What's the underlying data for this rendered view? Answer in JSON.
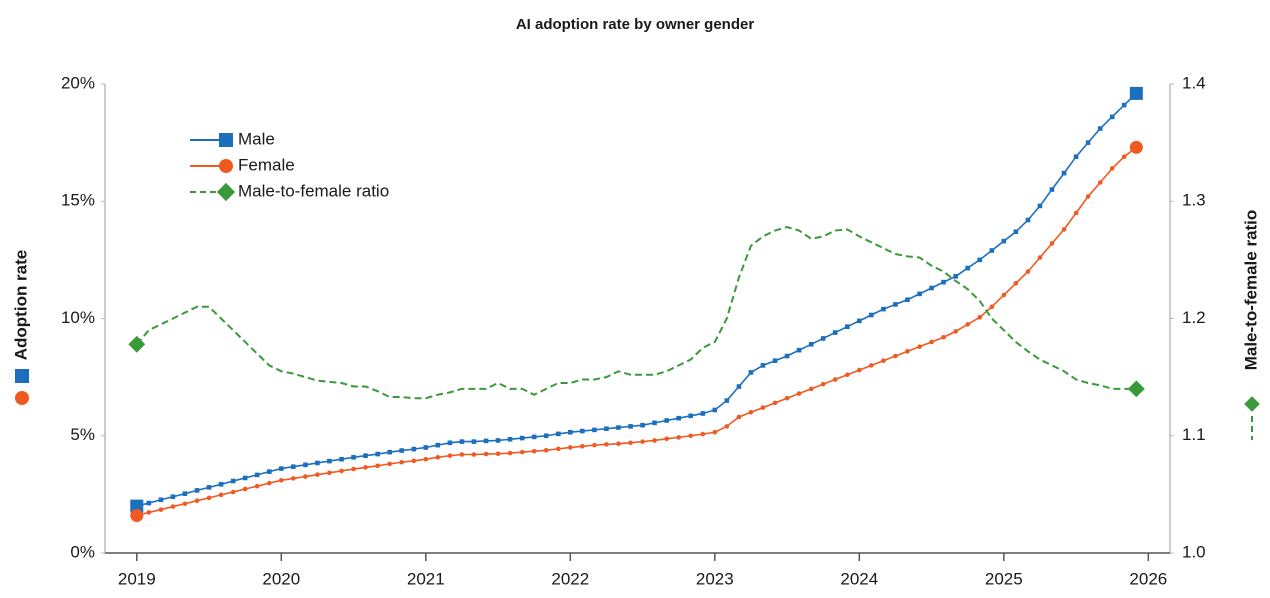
{
  "chart_data": {
    "type": "line",
    "title": "AI adoption rate by owner gender",
    "y_label": "Adoption rate",
    "y2_label": "Male-to-female ratio",
    "x": [
      2019,
      2019.083,
      2019.167,
      2019.25,
      2019.333,
      2019.417,
      2019.5,
      2019.583,
      2019.667,
      2019.75,
      2019.833,
      2019.917,
      2020,
      2020.083,
      2020.167,
      2020.25,
      2020.333,
      2020.417,
      2020.5,
      2020.583,
      2020.667,
      2020.75,
      2020.833,
      2020.917,
      2021,
      2021.083,
      2021.167,
      2021.25,
      2021.333,
      2021.417,
      2021.5,
      2021.583,
      2021.667,
      2021.75,
      2021.833,
      2021.917,
      2022,
      2022.083,
      2022.167,
      2022.25,
      2022.333,
      2022.417,
      2022.5,
      2022.583,
      2022.667,
      2022.75,
      2022.833,
      2022.917,
      2023,
      2023.083,
      2023.167,
      2023.25,
      2023.333,
      2023.417,
      2023.5,
      2023.583,
      2023.667,
      2023.75,
      2023.833,
      2023.917,
      2024,
      2024.083,
      2024.167,
      2024.25,
      2024.333,
      2024.417,
      2024.5,
      2024.583,
      2024.667,
      2024.75,
      2024.833,
      2024.917,
      2025,
      2025.083,
      2025.167,
      2025.25,
      2025.333,
      2025.417,
      2025.5,
      2025.583,
      2025.667,
      2025.75,
      2025.833,
      2025.917
    ],
    "series": [
      {
        "name": "Male",
        "color": "#1b6fbd",
        "marker": "square",
        "dashed": false,
        "values": [
          2.0,
          2.13,
          2.27,
          2.4,
          2.53,
          2.67,
          2.8,
          2.93,
          3.07,
          3.2,
          3.33,
          3.47,
          3.6,
          3.68,
          3.76,
          3.84,
          3.92,
          4.0,
          4.08,
          4.15,
          4.22,
          4.3,
          4.37,
          4.43,
          4.5,
          4.6,
          4.7,
          4.75,
          4.75,
          4.78,
          4.8,
          4.85,
          4.9,
          4.95,
          5.0,
          5.08,
          5.15,
          5.2,
          5.25,
          5.3,
          5.35,
          5.4,
          5.45,
          5.55,
          5.65,
          5.75,
          5.85,
          5.95,
          6.1,
          6.5,
          7.1,
          7.7,
          8.0,
          8.2,
          8.4,
          8.65,
          8.9,
          9.15,
          9.4,
          9.65,
          9.9,
          10.15,
          10.4,
          10.6,
          10.8,
          11.05,
          11.3,
          11.55,
          11.8,
          12.15,
          12.5,
          12.9,
          13.3,
          13.7,
          14.2,
          14.8,
          15.5,
          16.2,
          16.9,
          17.5,
          18.1,
          18.6,
          19.1,
          19.6
        ]
      },
      {
        "name": "Female",
        "color": "#f05a22",
        "marker": "circle",
        "dashed": false,
        "values": [
          1.6,
          1.73,
          1.85,
          1.98,
          2.1,
          2.23,
          2.35,
          2.48,
          2.6,
          2.73,
          2.85,
          2.98,
          3.1,
          3.18,
          3.26,
          3.34,
          3.42,
          3.5,
          3.58,
          3.65,
          3.72,
          3.8,
          3.87,
          3.93,
          4.0,
          4.08,
          4.15,
          4.2,
          4.2,
          4.22,
          4.23,
          4.26,
          4.3,
          4.34,
          4.38,
          4.44,
          4.5,
          4.55,
          4.6,
          4.63,
          4.66,
          4.7,
          4.75,
          4.8,
          4.87,
          4.93,
          5.0,
          5.07,
          5.15,
          5.4,
          5.8,
          6.0,
          6.2,
          6.4,
          6.6,
          6.8,
          7.0,
          7.2,
          7.4,
          7.6,
          7.8,
          8.0,
          8.2,
          8.4,
          8.6,
          8.8,
          9.0,
          9.2,
          9.45,
          9.75,
          10.05,
          10.5,
          11.0,
          11.5,
          12.0,
          12.6,
          13.2,
          13.8,
          14.5,
          15.2,
          15.8,
          16.4,
          16.9,
          17.3
        ]
      },
      {
        "name": "Male-to-female ratio",
        "color": "#3a9a3a",
        "marker": "diamond",
        "dashed": true,
        "axis": "y2",
        "values": [
          1.178,
          1.19,
          1.195,
          1.2,
          1.205,
          1.21,
          1.21,
          1.2,
          1.19,
          1.18,
          1.17,
          1.16,
          1.155,
          1.153,
          1.15,
          1.147,
          1.146,
          1.145,
          1.142,
          1.142,
          1.138,
          1.133,
          1.133,
          1.132,
          1.132,
          1.135,
          1.137,
          1.14,
          1.14,
          1.14,
          1.145,
          1.14,
          1.14,
          1.135,
          1.14,
          1.145,
          1.145,
          1.148,
          1.148,
          1.15,
          1.155,
          1.152,
          1.152,
          1.152,
          1.155,
          1.16,
          1.165,
          1.175,
          1.18,
          1.2,
          1.235,
          1.262,
          1.27,
          1.275,
          1.278,
          1.275,
          1.268,
          1.27,
          1.275,
          1.276,
          1.27,
          1.265,
          1.26,
          1.255,
          1.253,
          1.252,
          1.245,
          1.24,
          1.232,
          1.225,
          1.215,
          1.2,
          1.19,
          1.18,
          1.172,
          1.165,
          1.16,
          1.155,
          1.148,
          1.145,
          1.143,
          1.14,
          1.14,
          1.14
        ]
      }
    ],
    "xlim": [
      2018.78,
      2026.15
    ],
    "xticks": [
      2019,
      2020,
      2021,
      2022,
      2023,
      2024,
      2025,
      2026
    ],
    "ylim": [
      0,
      20
    ],
    "yticks": [
      {
        "value": 0,
        "label": "0%"
      },
      {
        "value": 5,
        "label": "5%"
      },
      {
        "value": 10,
        "label": "10%"
      },
      {
        "value": 15,
        "label": "15%"
      },
      {
        "value": 20,
        "label": "20%"
      }
    ],
    "y2lim": [
      1.0,
      1.4
    ],
    "y2ticks": [
      {
        "value": 1.0,
        "label": "1.0"
      },
      1.1,
      1.2,
      1.3,
      1.4
    ],
    "grid": false,
    "legend": "upper left"
  }
}
